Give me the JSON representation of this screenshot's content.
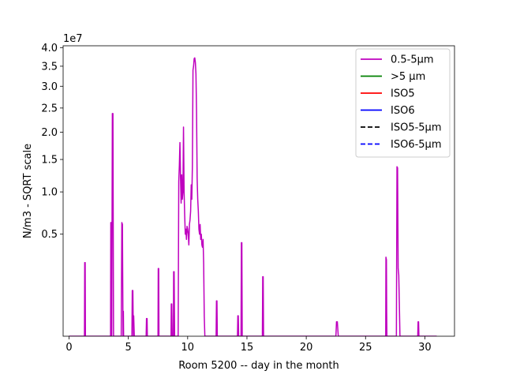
{
  "chart_data": {
    "type": "line",
    "title": "",
    "xlabel": "Room 5200 -- day in the month",
    "ylabel": "N/m3 - SQRT scale",
    "y_offset_label": "1e7",
    "y_scale": "sqrt",
    "xlim": [
      -0.5,
      32.5
    ],
    "ylim": [
      0,
      4.05
    ],
    "x_ticks": [
      0,
      5,
      10,
      15,
      20,
      25,
      30
    ],
    "x_tick_labels": [
      "0",
      "5",
      "10",
      "15",
      "20",
      "25",
      "30"
    ],
    "y_ticks": [
      0.5,
      1.0,
      1.5,
      2.0,
      2.5,
      3.0,
      3.5,
      4.0
    ],
    "y_tick_labels": [
      "0.5",
      "1.0",
      "1.5",
      "2.0",
      "2.5",
      "3.0",
      "3.5",
      "4.0"
    ],
    "grid": false,
    "legend_position": "top-right",
    "legend": [
      {
        "name": "0.5-5µm",
        "color": "#bf00bf",
        "dash": "solid"
      },
      {
        "name": ">5 µm",
        "color": "#008000",
        "dash": "solid"
      },
      {
        "name": "ISO5",
        "color": "#ff0000",
        "dash": "solid"
      },
      {
        "name": "ISO6",
        "color": "#0000ff",
        "dash": "solid"
      },
      {
        "name": "ISO5-5µm",
        "color": "#000000",
        "dash": "dashed"
      },
      {
        "name": "ISO6-5µm",
        "color": "#0000ff",
        "dashed": true,
        "dash": "dashed"
      }
    ],
    "series": [
      {
        "name": "0.5-5µm",
        "color": "#bf00bf",
        "points": [
          [
            0.0,
            0
          ],
          [
            1.3,
            0
          ],
          [
            1.32,
            0.26
          ],
          [
            1.36,
            0.26
          ],
          [
            1.38,
            0
          ],
          [
            3.5,
            0
          ],
          [
            3.52,
            0.62
          ],
          [
            3.54,
            0.62
          ],
          [
            3.56,
            0
          ],
          [
            3.6,
            0
          ],
          [
            3.65,
            2.38
          ],
          [
            3.7,
            2.38
          ],
          [
            3.75,
            0
          ],
          [
            4.4,
            0
          ],
          [
            4.45,
            0.62
          ],
          [
            4.5,
            0.6
          ],
          [
            4.55,
            0
          ],
          [
            4.58,
            0.03
          ],
          [
            4.6,
            0
          ],
          [
            5.3,
            0
          ],
          [
            5.33,
            0.1
          ],
          [
            5.38,
            0.1
          ],
          [
            5.42,
            0
          ],
          [
            5.45,
            0.02
          ],
          [
            5.5,
            0
          ],
          [
            6.5,
            0
          ],
          [
            6.53,
            0.015
          ],
          [
            6.58,
            0.015
          ],
          [
            6.6,
            0
          ],
          [
            7.5,
            0
          ],
          [
            7.52,
            0.22
          ],
          [
            7.56,
            0.22
          ],
          [
            7.58,
            0
          ],
          [
            8.6,
            0
          ],
          [
            8.62,
            0.05
          ],
          [
            8.66,
            0.05
          ],
          [
            8.7,
            0
          ],
          [
            8.8,
            0
          ],
          [
            8.82,
            0.2
          ],
          [
            8.86,
            0.2
          ],
          [
            8.9,
            0
          ],
          [
            9.2,
            0
          ],
          [
            9.25,
            1.15
          ],
          [
            9.3,
            1.4
          ],
          [
            9.35,
            1.8
          ],
          [
            9.4,
            1.2
          ],
          [
            9.45,
            0.85
          ],
          [
            9.5,
            1.25
          ],
          [
            9.55,
            0.9
          ],
          [
            9.6,
            1.0
          ],
          [
            9.65,
            2.1
          ],
          [
            9.7,
            1.0
          ],
          [
            9.75,
            0.7
          ],
          [
            9.8,
            0.5
          ],
          [
            9.85,
            0.55
          ],
          [
            9.9,
            0.45
          ],
          [
            9.95,
            0.58
          ],
          [
            10.0,
            0.55
          ],
          [
            10.05,
            0.5
          ],
          [
            10.1,
            0.4
          ],
          [
            10.15,
            0.6
          ],
          [
            10.2,
            0.65
          ],
          [
            10.25,
            0.75
          ],
          [
            10.3,
            1.1
          ],
          [
            10.35,
            0.9
          ],
          [
            10.4,
            1.4
          ],
          [
            10.45,
            3.4
          ],
          [
            10.5,
            3.5
          ],
          [
            10.55,
            3.7
          ],
          [
            10.6,
            3.72
          ],
          [
            10.65,
            3.6
          ],
          [
            10.7,
            3.3
          ],
          [
            10.75,
            2.4
          ],
          [
            10.8,
            1.2
          ],
          [
            10.85,
            0.9
          ],
          [
            10.9,
            0.75
          ],
          [
            10.95,
            0.55
          ],
          [
            11.0,
            0.5
          ],
          [
            11.05,
            0.6
          ],
          [
            11.1,
            0.45
          ],
          [
            11.15,
            0.5
          ],
          [
            11.2,
            0.4
          ],
          [
            11.25,
            0.38
          ],
          [
            11.3,
            0.45
          ],
          [
            11.35,
            0.25
          ],
          [
            11.4,
            0.02
          ],
          [
            11.45,
            0
          ],
          [
            12.4,
            0
          ],
          [
            12.43,
            0.06
          ],
          [
            12.47,
            0.06
          ],
          [
            12.5,
            0
          ],
          [
            14.2,
            0
          ],
          [
            14.23,
            0.02
          ],
          [
            14.27,
            0.02
          ],
          [
            14.3,
            0
          ],
          [
            14.5,
            0
          ],
          [
            14.53,
            0.42
          ],
          [
            14.57,
            0.42
          ],
          [
            14.6,
            0
          ],
          [
            16.3,
            0
          ],
          [
            16.33,
            0.17
          ],
          [
            16.37,
            0.17
          ],
          [
            16.4,
            0
          ],
          [
            22.5,
            0
          ],
          [
            22.55,
            0.01
          ],
          [
            22.62,
            0.01
          ],
          [
            22.7,
            0
          ],
          [
            26.7,
            0
          ],
          [
            26.72,
            0.3
          ],
          [
            26.76,
            0.28
          ],
          [
            26.78,
            0.03
          ],
          [
            26.8,
            0
          ],
          [
            27.6,
            0
          ],
          [
            27.65,
            1.38
          ],
          [
            27.7,
            1.36
          ],
          [
            27.75,
            0.22
          ],
          [
            27.8,
            0.18
          ],
          [
            27.85,
            0.05
          ],
          [
            27.9,
            0
          ],
          [
            29.4,
            0
          ],
          [
            29.43,
            0.01
          ],
          [
            29.47,
            0.01
          ],
          [
            29.5,
            0
          ],
          [
            31.0,
            0
          ]
        ]
      }
    ]
  }
}
